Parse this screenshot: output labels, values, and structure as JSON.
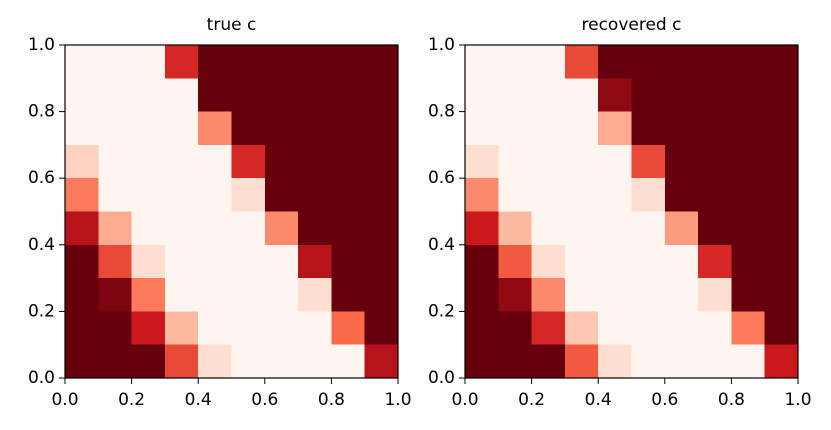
{
  "chart_data": [
    {
      "type": "heatmap",
      "title": "true c",
      "x": [
        0.05,
        0.15,
        0.25,
        0.35,
        0.45,
        0.55,
        0.65,
        0.75,
        0.85,
        0.95
      ],
      "y": [
        0.95,
        0.85,
        0.75,
        0.65,
        0.55,
        0.45,
        0.35,
        0.25,
        0.15,
        0.05
      ],
      "values": [
        [
          0,
          0,
          0,
          0.7,
          1,
          1,
          1,
          1,
          1,
          1
        ],
        [
          0,
          0,
          0,
          0,
          1,
          1,
          1,
          1,
          1,
          1
        ],
        [
          0,
          0,
          0,
          0,
          0.4,
          1,
          1,
          1,
          1,
          1
        ],
        [
          0.15,
          0,
          0,
          0,
          0,
          0.7,
          1,
          1,
          1,
          1
        ],
        [
          0.45,
          0,
          0,
          0,
          0,
          0.1,
          1,
          1,
          1,
          1
        ],
        [
          0.8,
          0.3,
          0,
          0,
          0,
          0,
          0.4,
          1,
          1,
          1
        ],
        [
          1,
          0.6,
          0.1,
          0,
          0,
          0,
          0,
          0.8,
          1,
          1
        ],
        [
          1,
          0.95,
          0.45,
          0,
          0,
          0,
          0,
          0.1,
          1,
          1
        ],
        [
          1,
          1,
          0.75,
          0.25,
          0,
          0,
          0,
          0,
          0.5,
          1
        ],
        [
          1,
          1,
          1,
          0.6,
          0.1,
          0,
          0,
          0,
          0,
          0.8
        ]
      ],
      "colormap": [
        "#fff5f0",
        "#fcbba1",
        "#fb6a4a",
        "#cb181d",
        "#67000d"
      ],
      "xlim": [
        0,
        1
      ],
      "ylim": [
        0,
        1
      ],
      "xticks": [
        {
          "value": 0,
          "label": "0.0"
        },
        {
          "value": 0.2,
          "label": "0.2"
        },
        {
          "value": 0.4,
          "label": "0.4"
        },
        {
          "value": 0.6,
          "label": "0.6"
        },
        {
          "value": 0.8,
          "label": "0.8"
        },
        {
          "value": 1,
          "label": "1.0"
        }
      ],
      "yticks": [
        {
          "value": 0,
          "label": "0.0"
        },
        {
          "value": 0.2,
          "label": "0.2"
        },
        {
          "value": 0.4,
          "label": "0.4"
        },
        {
          "value": 0.6,
          "label": "0.6"
        },
        {
          "value": 0.8,
          "label": "0.8"
        },
        {
          "value": 1,
          "label": "1.0"
        }
      ]
    },
    {
      "type": "heatmap",
      "title": "recovered c",
      "x": [
        0.05,
        0.15,
        0.25,
        0.35,
        0.45,
        0.55,
        0.65,
        0.75,
        0.85,
        0.95
      ],
      "y": [
        0.95,
        0.85,
        0.75,
        0.65,
        0.55,
        0.45,
        0.35,
        0.25,
        0.15,
        0.05
      ],
      "values": [
        [
          0,
          0,
          0,
          0.6,
          1,
          1,
          1,
          1,
          1,
          1
        ],
        [
          0,
          0,
          0,
          0,
          0.9,
          1,
          1,
          1,
          1,
          1
        ],
        [
          0,
          0,
          0,
          0,
          0.3,
          1,
          1,
          1,
          1,
          1
        ],
        [
          0.1,
          0,
          0,
          0,
          0,
          0.6,
          1,
          1,
          1,
          1
        ],
        [
          0.4,
          0,
          0,
          0,
          0,
          0.1,
          1,
          1,
          1,
          1
        ],
        [
          0.75,
          0.25,
          0,
          0,
          0,
          0,
          0.35,
          1,
          1,
          1
        ],
        [
          1,
          0.55,
          0.1,
          0,
          0,
          0,
          0,
          0.7,
          1,
          1
        ],
        [
          1,
          0.9,
          0.4,
          0,
          0,
          0,
          0,
          0.1,
          1,
          1
        ],
        [
          1,
          1,
          0.7,
          0.2,
          0,
          0,
          0,
          0,
          0.45,
          1
        ],
        [
          1,
          1,
          1,
          0.55,
          0.1,
          0,
          0,
          0,
          0,
          0.75
        ]
      ],
      "colormap": [
        "#fff5f0",
        "#fcbba1",
        "#fb6a4a",
        "#cb181d",
        "#67000d"
      ],
      "xlim": [
        0,
        1
      ],
      "ylim": [
        0,
        1
      ],
      "xticks": [
        {
          "value": 0,
          "label": "0.0"
        },
        {
          "value": 0.2,
          "label": "0.2"
        },
        {
          "value": 0.4,
          "label": "0.4"
        },
        {
          "value": 0.6,
          "label": "0.6"
        },
        {
          "value": 0.8,
          "label": "0.8"
        },
        {
          "value": 1,
          "label": "1.0"
        }
      ],
      "yticks": [
        {
          "value": 0,
          "label": "0.0"
        },
        {
          "value": 0.2,
          "label": "0.2"
        },
        {
          "value": 0.4,
          "label": "0.4"
        },
        {
          "value": 0.6,
          "label": "0.6"
        },
        {
          "value": 0.8,
          "label": "0.8"
        },
        {
          "value": 1,
          "label": "1.0"
        }
      ]
    }
  ]
}
